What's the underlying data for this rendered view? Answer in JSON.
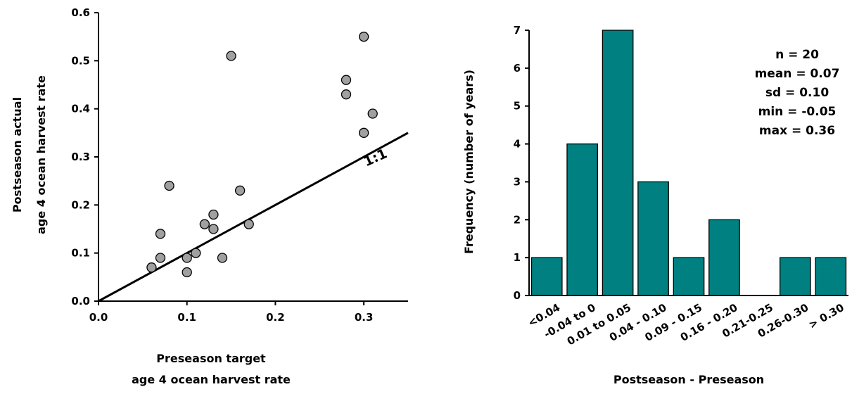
{
  "chart_data": [
    {
      "type": "scatter",
      "xlabel_lines": [
        "Preseason target",
        "age 4 ocean harvest rate"
      ],
      "ylabel_lines": [
        "Postseason actual",
        "age 4 ocean harvest rate"
      ],
      "xlim": [
        0,
        0.35
      ],
      "ylim": [
        0,
        0.6
      ],
      "xticks": [
        "0.0",
        "0.1",
        "0.2",
        "0.3"
      ],
      "yticks": [
        "0.0",
        "0.1",
        "0.2",
        "0.3",
        "0.4",
        "0.5",
        "0.6"
      ],
      "reference_line": {
        "label": "1:1",
        "slope": 1
      },
      "point_color": "#a0a0a0",
      "points": [
        {
          "x": 0.06,
          "y": 0.07
        },
        {
          "x": 0.07,
          "y": 0.09
        },
        {
          "x": 0.07,
          "y": 0.14
        },
        {
          "x": 0.08,
          "y": 0.24
        },
        {
          "x": 0.1,
          "y": 0.06
        },
        {
          "x": 0.1,
          "y": 0.09
        },
        {
          "x": 0.11,
          "y": 0.1
        },
        {
          "x": 0.12,
          "y": 0.16
        },
        {
          "x": 0.13,
          "y": 0.15
        },
        {
          "x": 0.13,
          "y": 0.18
        },
        {
          "x": 0.14,
          "y": 0.09
        },
        {
          "x": 0.15,
          "y": 0.51
        },
        {
          "x": 0.16,
          "y": 0.23
        },
        {
          "x": 0.17,
          "y": 0.16
        },
        {
          "x": 0.28,
          "y": 0.46
        },
        {
          "x": 0.28,
          "y": 0.43
        },
        {
          "x": 0.3,
          "y": 0.55
        },
        {
          "x": 0.31,
          "y": 0.39
        },
        {
          "x": 0.3,
          "y": 0.35
        }
      ]
    },
    {
      "type": "bar",
      "xlabel": "Postseason - Preseason",
      "ylabel": "Frequency (number of years)",
      "ylim": [
        0,
        7
      ],
      "yticks": [
        "0",
        "1",
        "2",
        "3",
        "4",
        "5",
        "6",
        "7"
      ],
      "bar_color": "#008080",
      "categories": [
        "<0.04",
        "-0.04 to 0",
        "0.01 to 0.05",
        "0.04 - 0.10",
        "0.09 - 0.15",
        "0.16 - 0.20",
        "0.21-0.25",
        "0.26-0.30",
        "> 0.30"
      ],
      "values": [
        1,
        4,
        7,
        3,
        1,
        2,
        0,
        1,
        1
      ],
      "stats": [
        "n = 20",
        "mean = 0.07",
        "sd = 0.10",
        "min = -0.05",
        "max = 0.36"
      ]
    }
  ]
}
